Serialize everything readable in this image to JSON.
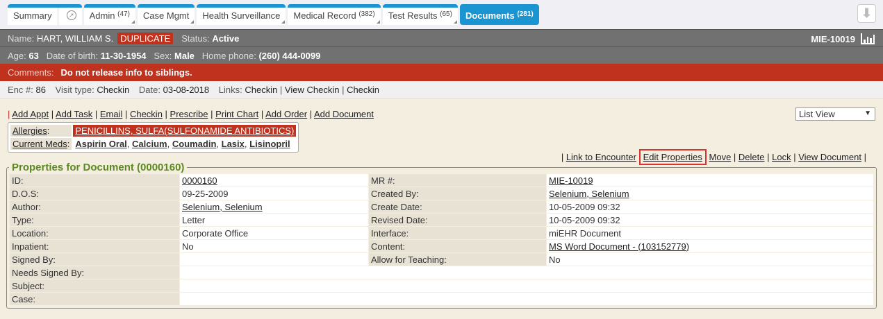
{
  "tabs": [
    {
      "label": "Summary",
      "count": ""
    },
    {
      "label": "Admin",
      "count": "(47)"
    },
    {
      "label": "Case Mgmt",
      "count": ""
    },
    {
      "label": "Health Surveillance",
      "count": ""
    },
    {
      "label": "Medical Record",
      "count": "(382)"
    },
    {
      "label": "Test Results",
      "count": "(65)"
    },
    {
      "label": "Documents",
      "count": "(281)"
    }
  ],
  "patient": {
    "name_label": "Name:",
    "name": "HART, WILLIAM S.",
    "badge": "DUPLICATE",
    "status_label": "Status:",
    "status": "Active",
    "mrn": "MIE-10019",
    "age_label": "Age:",
    "age": "63",
    "dob_label": "Date of birth:",
    "dob": "11-30-1954",
    "sex_label": "Sex:",
    "sex": "Male",
    "phone_label": "Home phone:",
    "phone": "(260) 444-0099"
  },
  "comments": {
    "label": "Comments:",
    "text": "Do not release info to siblings."
  },
  "encounter": {
    "enc_label": "Enc #:",
    "enc": "86",
    "visit_label": "Visit type:",
    "visit": "Checkin",
    "date_label": "Date:",
    "date": "03-08-2018",
    "links_label": "Links:",
    "links": [
      "Checkin",
      "View Checkin",
      "Checkin"
    ]
  },
  "actions": [
    "Add Appt",
    "Add Task",
    "Email",
    "Checkin",
    "Prescribe",
    "Print Chart",
    "Add Order",
    "Add Document"
  ],
  "view_select": "List View",
  "allergies": {
    "label": "Allergies",
    "value": "PENICILLINS, SULFA(SULFONAMIDE ANTIBIOTICS)"
  },
  "meds": {
    "label": "Current Meds",
    "items": [
      "Aspirin Oral",
      "Calcium",
      "Coumadin",
      "Lasix",
      "Lisinopril"
    ]
  },
  "doc_links": [
    "Link to Encounter",
    "Edit Properties",
    "Move",
    "Delete",
    "Lock",
    "View Document"
  ],
  "properties": {
    "title": "Properties for Document (0000160)",
    "rows": [
      [
        "ID:",
        "0000160",
        "MR #:",
        "MIE-10019"
      ],
      [
        "D.O.S:",
        "09-25-2009",
        "Created By:",
        "Selenium, Selenium"
      ],
      [
        "Author:",
        "Selenium, Selenium",
        "Create Date:",
        "10-05-2009 09:32"
      ],
      [
        "Type:",
        "Letter",
        "Revised Date:",
        "10-05-2009 09:32"
      ],
      [
        "Location:",
        "Corporate Office",
        "Interface:",
        "miEHR Document"
      ],
      [
        "Inpatient:",
        "No",
        "Content:",
        "MS Word Document - (103152779)"
      ],
      [
        "Signed By:",
        "",
        "Allow for Teaching:",
        "No"
      ],
      [
        "Needs Signed By:",
        ""
      ],
      [
        "Subject:",
        ""
      ],
      [
        "Case:",
        ""
      ]
    ]
  }
}
